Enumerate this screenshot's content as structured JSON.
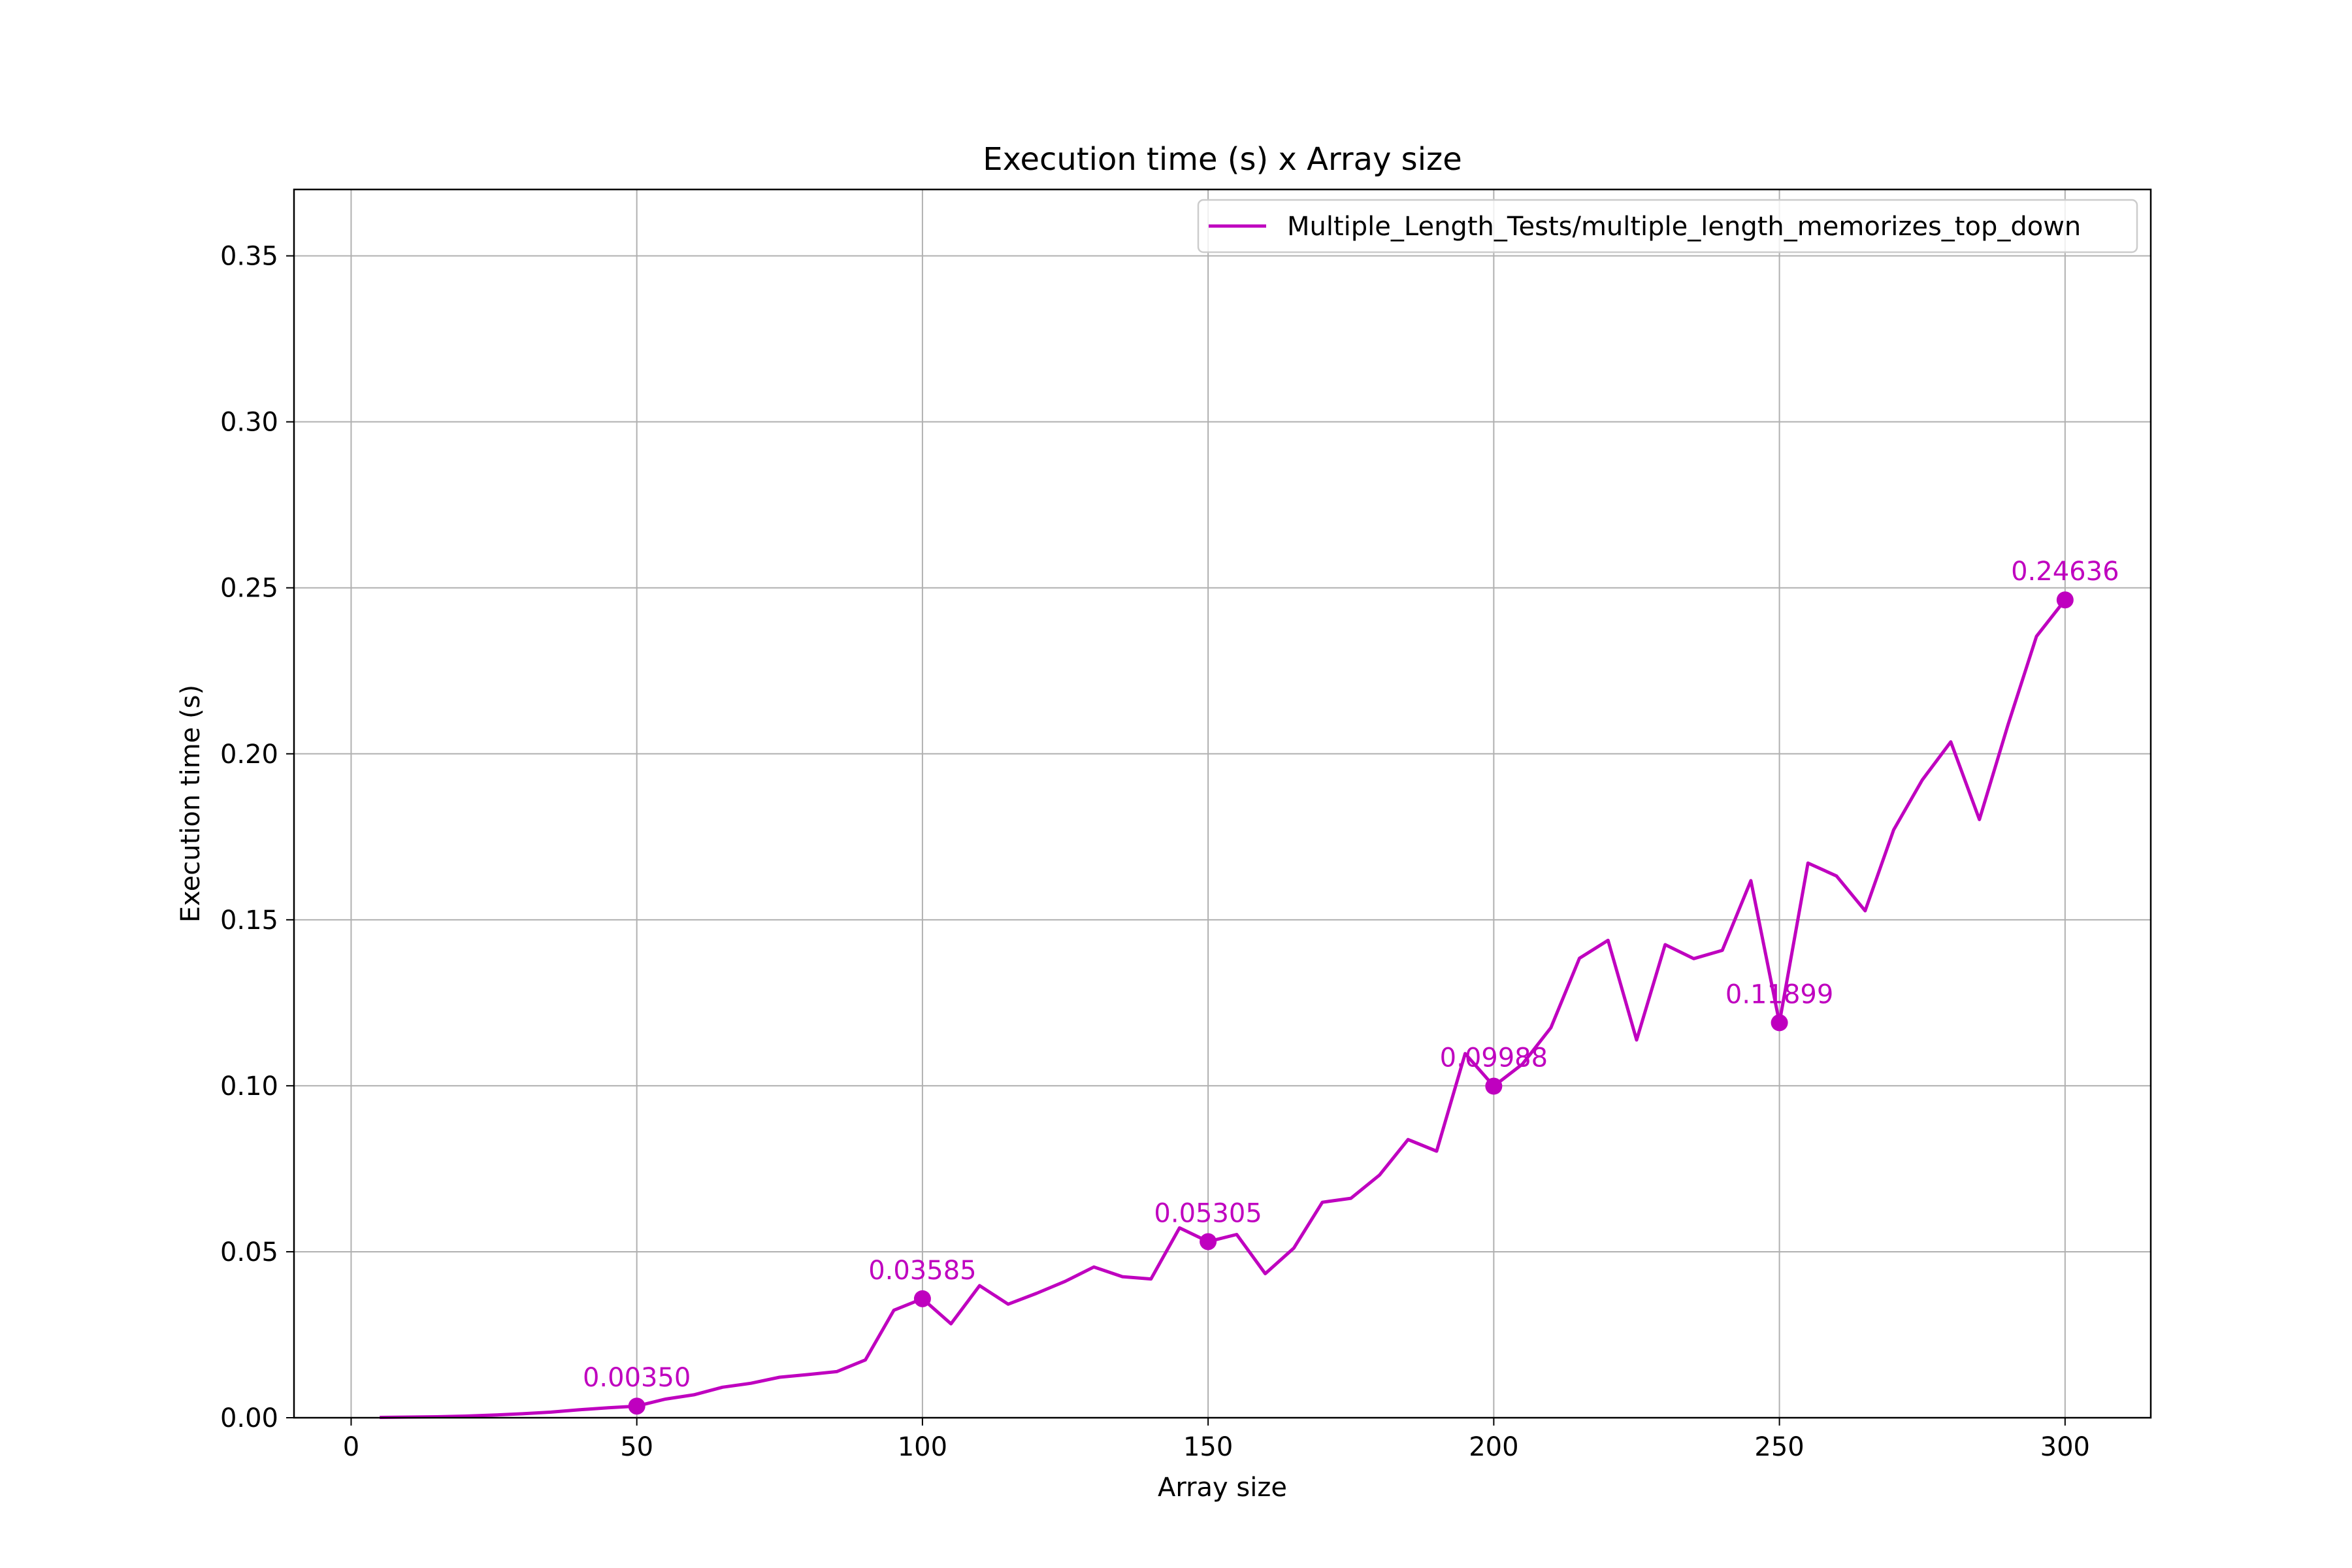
{
  "chart_data": {
    "type": "line",
    "title": "Execution time (s) x Array size",
    "xlabel": "Array size",
    "ylabel": "Execution time (s)",
    "xlim": [
      -10,
      315
    ],
    "ylim": [
      0,
      0.37
    ],
    "xticks": [
      0,
      50,
      100,
      150,
      200,
      250,
      300
    ],
    "xtick_labels": [
      "0",
      "50",
      "100",
      "150",
      "200",
      "250",
      "300"
    ],
    "yticks": [
      0,
      0.05,
      0.1,
      0.15,
      0.2,
      0.25,
      0.3,
      0.35
    ],
    "ytick_labels": [
      "0.00",
      "0.05",
      "0.10",
      "0.15",
      "0.20",
      "0.25",
      "0.30",
      "0.35"
    ],
    "grid": true,
    "legend_position": "top-right",
    "color": "#bf00bf",
    "series": [
      {
        "name": "Multiple_Length_Tests/multiple_length_memorizes_top_down",
        "x": [
          5,
          10,
          15,
          20,
          25,
          30,
          35,
          40,
          45,
          50,
          55,
          60,
          65,
          70,
          75,
          80,
          85,
          90,
          95,
          100,
          105,
          110,
          115,
          120,
          125,
          130,
          135,
          140,
          145,
          150,
          155,
          160,
          165,
          170,
          175,
          180,
          185,
          190,
          195,
          200,
          205,
          210,
          215,
          220,
          225,
          230,
          235,
          240,
          245,
          250,
          255,
          260,
          265,
          270,
          275,
          280,
          285,
          290,
          295,
          300
        ],
        "y": [
          0.0001,
          0.0002,
          0.0003,
          0.0005,
          0.0008,
          0.0012,
          0.0017,
          0.0024,
          0.003,
          0.0035,
          0.0056,
          0.0069,
          0.0092,
          0.0104,
          0.0122,
          0.013,
          0.0139,
          0.0174,
          0.0324,
          0.03585,
          0.0283,
          0.0398,
          0.0342,
          0.0375,
          0.0411,
          0.0454,
          0.0425,
          0.0418,
          0.0572,
          0.05305,
          0.0552,
          0.0434,
          0.0511,
          0.0649,
          0.0661,
          0.0731,
          0.0838,
          0.0803,
          0.1097,
          0.09988,
          0.1065,
          0.1175,
          0.1384,
          0.1438,
          0.1138,
          0.1425,
          0.1383,
          0.1408,
          0.1618,
          0.11899,
          0.1671,
          0.1632,
          0.1527,
          0.1771,
          0.1921,
          0.2036,
          0.1802,
          0.2087,
          0.2354,
          0.24636
        ]
      }
    ],
    "markers": [
      {
        "x": 50,
        "y": 0.0035,
        "label": "0.00350"
      },
      {
        "x": 100,
        "y": 0.03585,
        "label": "0.03585"
      },
      {
        "x": 150,
        "y": 0.05305,
        "label": "0.05305"
      },
      {
        "x": 200,
        "y": 0.09988,
        "label": "0.09988"
      },
      {
        "x": 250,
        "y": 0.11899,
        "label": "0.11899"
      },
      {
        "x": 300,
        "y": 0.24636,
        "label": "0.24636"
      }
    ]
  }
}
